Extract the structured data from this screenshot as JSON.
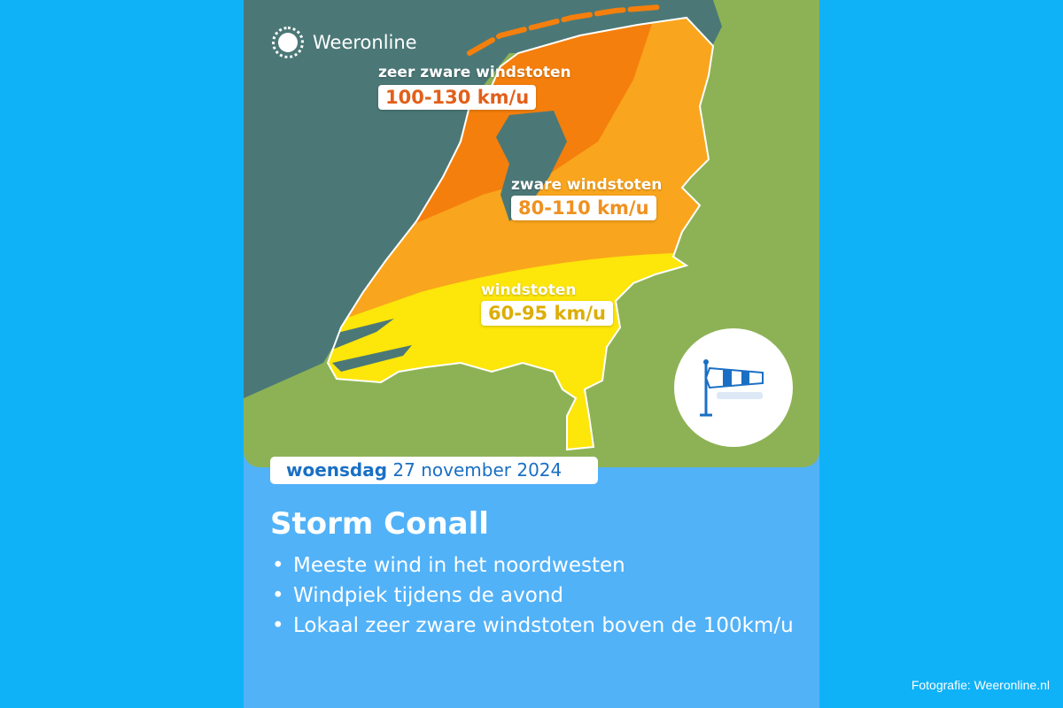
{
  "brand": {
    "name": "Weeronline",
    "logo_icon": "sun-icon"
  },
  "map": {
    "colors": {
      "sea": "#4b7877",
      "land": "#8db255",
      "very_heavy": "#f57f0c",
      "heavy": "#f9a51d",
      "gusts": "#fde60a"
    },
    "zones": [
      {
        "title": "zeer zware windstoten",
        "range": "100-130 km/u",
        "color": "#e2601a"
      },
      {
        "title": "zware windstoten",
        "range": "80-110 km/u",
        "color": "#ef9120"
      },
      {
        "title": "windstoten",
        "range": "60-95 km/u",
        "color": "#dcae06"
      }
    ],
    "badge_icon": "windsock-icon"
  },
  "date": {
    "day": "woensdag",
    "rest": "27 november 2024"
  },
  "title": "Storm Conall",
  "bullets": [
    "Meeste wind in het noordwesten",
    "Windpiek tijdens de avond",
    "Lokaal zeer zware windstoten boven de 100km/u"
  ],
  "credit": "Fotografie: Weeronline.nl"
}
